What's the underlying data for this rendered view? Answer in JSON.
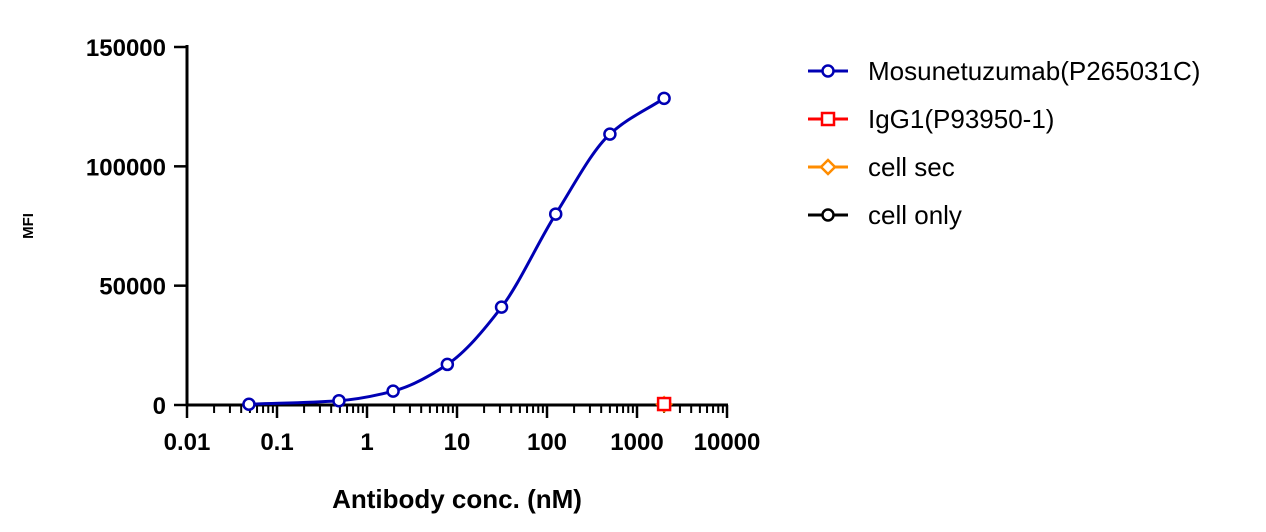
{
  "chart_data": {
    "type": "scatter",
    "title": "",
    "xlabel": "Antibody conc. (nM)",
    "ylabel": "MFI",
    "xscale": "log",
    "xlim": [
      0.01,
      10000
    ],
    "ylim": [
      0,
      150000
    ],
    "x_ticks": [
      0.01,
      0.1,
      1,
      10,
      100,
      1000,
      10000
    ],
    "x_tick_labels": [
      "0.01",
      "0.1",
      "1",
      "10",
      "100",
      "1000",
      "10000"
    ],
    "y_ticks": [
      0,
      50000,
      100000,
      150000
    ],
    "y_tick_labels": [
      "0",
      "50000",
      "100000",
      "150000"
    ],
    "grid": false,
    "legend_position": "right",
    "series": [
      {
        "name": "Mosunetuzumab(P265031C)",
        "color": "#0000b4",
        "marker": "circle",
        "fit_curve": true,
        "x": [
          0.0488,
          0.488,
          1.95,
          7.81,
          31.25,
          125,
          500,
          2000
        ],
        "y": [
          300,
          1800,
          5800,
          17000,
          41000,
          80000,
          113500,
          128500
        ]
      },
      {
        "name": "IgG1(P93950-1)",
        "color": "#ff0000",
        "marker": "square",
        "fit_curve": false,
        "x": [
          2000
        ],
        "y": [
          400
        ]
      },
      {
        "name": "cell sec",
        "color": "#ff8c00",
        "marker": "diamond",
        "fit_curve": false,
        "x": [
          2000
        ],
        "y": [
          300
        ]
      },
      {
        "name": "cell only",
        "color": "#000000",
        "marker": "circle",
        "fit_curve": false,
        "x": [
          2000
        ],
        "y": [
          200
        ]
      }
    ]
  }
}
